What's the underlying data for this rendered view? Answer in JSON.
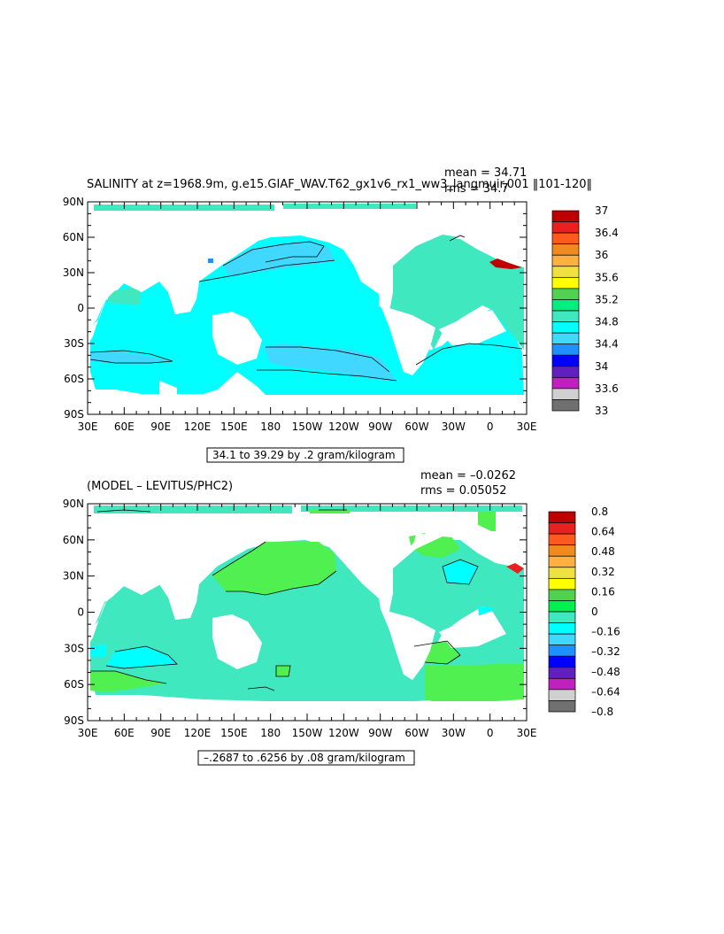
{
  "chart_data": [
    {
      "type": "heatmap",
      "title": "SALINITY at z=1968.9m, g.e15.GIAF_WAV.T62_gx1v6_rx1_ww3_langmuir.001 ‖101-120‖",
      "stats": {
        "mean": "mean = 34.71",
        "rms": "rms = 34.7"
      },
      "range_note": "34.1 to 39.29 by .2 gram/kilogram",
      "x_ticks": [
        "30E",
        "60E",
        "90E",
        "120E",
        "150E",
        "180",
        "150W",
        "120W",
        "90W",
        "60W",
        "30W",
        "0",
        "30E"
      ],
      "y_ticks": [
        "90N",
        "60N",
        "30N",
        "0",
        "30S",
        "60S",
        "90S"
      ],
      "colorbar_labels": [
        "37",
        "36.4",
        "36",
        "35.6",
        "35.2",
        "34.8",
        "34.4",
        "34",
        "33.6",
        "33"
      ],
      "colorbar_colors": [
        "#c00000",
        "#e82020",
        "#ff5a1e",
        "#f08a1e",
        "#ffb040",
        "#f0e040",
        "#ffff00",
        "#50d250",
        "#00f080",
        "#40e8c0",
        "#00ffff",
        "#40d8ff",
        "#1e90ff",
        "#0000ff",
        "#6020c0",
        "#c020c0",
        "#d0d0d0",
        "#707070"
      ],
      "fill_colors": {
        "ocean": "#00ffff",
        "high": "#40e8c0",
        "low": "#40d8ff",
        "deep_low": "#1e90ff",
        "red": "#c00000"
      }
    },
    {
      "type": "heatmap",
      "title": "(MODEL – LEVITUS/PHC2)",
      "stats": {
        "mean": "mean = –0.0262",
        "rms": "rms = 0.05052"
      },
      "range_note": "–.2687 to .6256 by .08 gram/kilogram",
      "x_ticks": [
        "30E",
        "60E",
        "90E",
        "120E",
        "150E",
        "180",
        "150W",
        "120W",
        "90W",
        "60W",
        "30W",
        "0",
        "30E"
      ],
      "y_ticks": [
        "90N",
        "60N",
        "30N",
        "0",
        "30S",
        "60S",
        "90S"
      ],
      "colorbar_labels": [
        "0.8",
        "0.64",
        "0.48",
        "0.32",
        "0.16",
        "0",
        "–0.16",
        "–0.32",
        "–0.48",
        "–0.64",
        "–0.8"
      ],
      "colorbar_colors": [
        "#c00000",
        "#e82020",
        "#ff5a1e",
        "#f08a1e",
        "#ffb040",
        "#f0e040",
        "#ffff00",
        "#50d250",
        "#00f050",
        "#40e8c0",
        "#00ffff",
        "#40d8ff",
        "#1e90ff",
        "#0000ff",
        "#6020c0",
        "#c020c0",
        "#d0d0d0",
        "#707070"
      ],
      "fill_colors": {
        "ocean": "#40e8c0",
        "pos": "#50f050",
        "neg": "#00ffff",
        "red": "#e82020"
      }
    }
  ]
}
